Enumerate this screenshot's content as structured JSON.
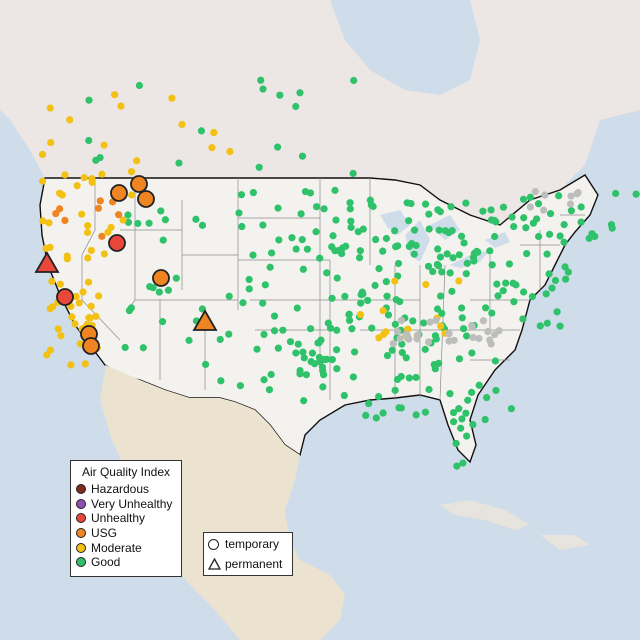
{
  "colors": {
    "ocean": "#cfdcea",
    "land_us": "#f4f2ef",
    "land_other": "#e7e3dd",
    "canada": "#ece6e4",
    "mexico": "#ebe2d0",
    "border": "#111111",
    "state_line": "#8c8c8c"
  },
  "legend": {
    "title": "Air Quality Index",
    "categories": [
      {
        "key": "hazardous",
        "label": "Hazardous",
        "color": "#7e2b1e"
      },
      {
        "key": "very_unhealthy",
        "label": "Very Unhealthy",
        "color": "#8f4fb7"
      },
      {
        "key": "unhealthy",
        "label": "Unhealthy",
        "color": "#e8473a"
      },
      {
        "key": "usg",
        "label": "USG",
        "color": "#ee8422"
      },
      {
        "key": "moderate",
        "label": "Moderate",
        "color": "#f3c114"
      },
      {
        "key": "good",
        "label": "Good",
        "color": "#2fc26b"
      }
    ],
    "types": [
      {
        "key": "temporary",
        "label": "temporary",
        "icon": "circle-icon"
      },
      {
        "key": "permanent",
        "label": "permanent",
        "icon": "triangle-icon"
      }
    ],
    "no_data_color": "#bdbdbd"
  },
  "site_clusters": {
    "good_east": 260,
    "good_west": 55,
    "moderate_west": 60,
    "grey_nodata": 25
  }
}
